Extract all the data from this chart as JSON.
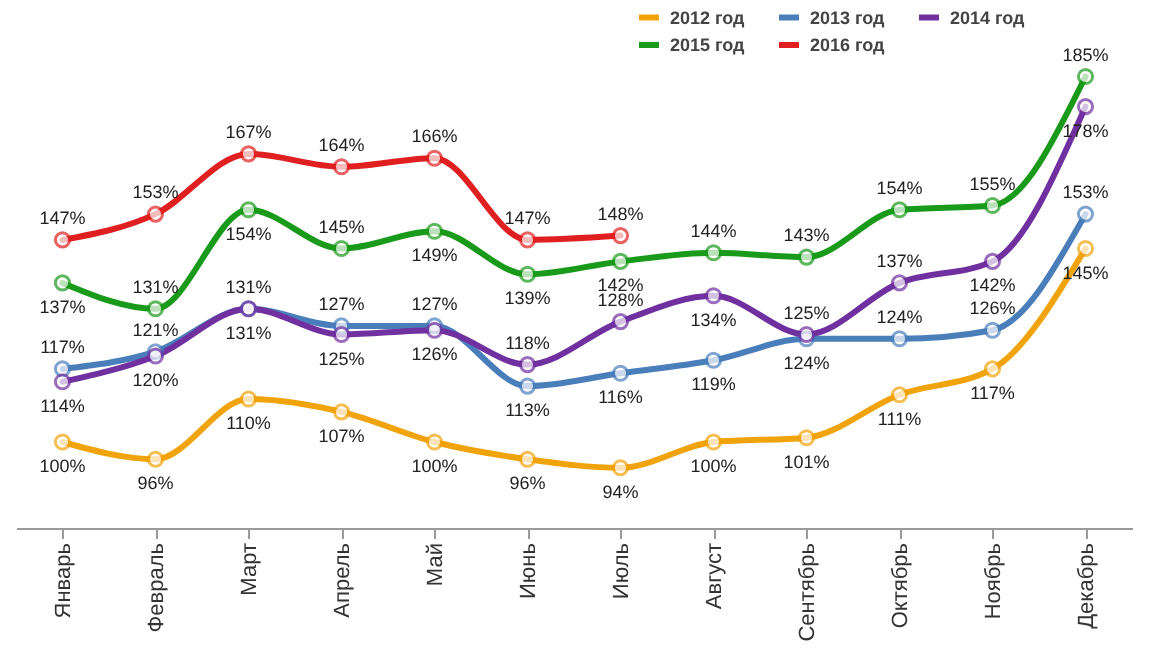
{
  "chart_data": {
    "type": "line",
    "categories": [
      "Январь",
      "Февраль",
      "Март",
      "Апрель",
      "Май",
      "Июнь",
      "Июль",
      "Август",
      "Сентябрь",
      "Октябрь",
      "Ноябрь",
      "Декабрь"
    ],
    "series": [
      {
        "name": "2012 год",
        "color": "#f0a30a",
        "values": [
          100,
          96,
          110,
          107,
          100,
          96,
          94,
          100,
          101,
          111,
          117,
          145
        ],
        "value_labels": [
          "100%",
          "96%",
          "110%",
          "107%",
          "100%",
          "96%",
          "94%",
          "100%",
          "101%",
          "111%",
          "117%",
          "145%"
        ]
      },
      {
        "name": "2013 год",
        "color": "#4a7ebb",
        "values": [
          117,
          121,
          131,
          127,
          127,
          113,
          116,
          119,
          124,
          124,
          126,
          153
        ],
        "value_labels": [
          "117%",
          "121%",
          "131%",
          "127%",
          "127%",
          "113%",
          "116%",
          "119%",
          "124%",
          "124%",
          "126%",
          "153%"
        ]
      },
      {
        "name": "2014 год",
        "color": "#7030a0",
        "values": [
          114,
          120,
          131,
          125,
          126,
          118,
          128,
          134,
          125,
          137,
          142,
          178
        ],
        "value_labels": [
          "114%",
          "120%",
          "131%",
          "125%",
          "126%",
          "118%",
          "128%",
          "134%",
          "125%",
          "137%",
          "142%",
          "178%"
        ]
      },
      {
        "name": "2015 год",
        "color": "#1a9a1a",
        "values": [
          137,
          131,
          154,
          145,
          149,
          139,
          142,
          144,
          143,
          154,
          155,
          185
        ],
        "value_labels": [
          "137%",
          "131%",
          "154%",
          "145%",
          "149%",
          "139%",
          "142%",
          "144%",
          "143%",
          "154%",
          "155%",
          "185%"
        ]
      },
      {
        "name": "2016 год",
        "color": "#e02020",
        "values": [
          147,
          153,
          167,
          164,
          166,
          147,
          148,
          null,
          null,
          null,
          null,
          null
        ],
        "value_labels": [
          "147%",
          "153%",
          "167%",
          "164%",
          "166%",
          "147%",
          "148%",
          null,
          null,
          null,
          null,
          null
        ]
      }
    ],
    "legend": "top right",
    "marker": "circle",
    "line_style": "solid",
    "tick_labels": "x"
  }
}
